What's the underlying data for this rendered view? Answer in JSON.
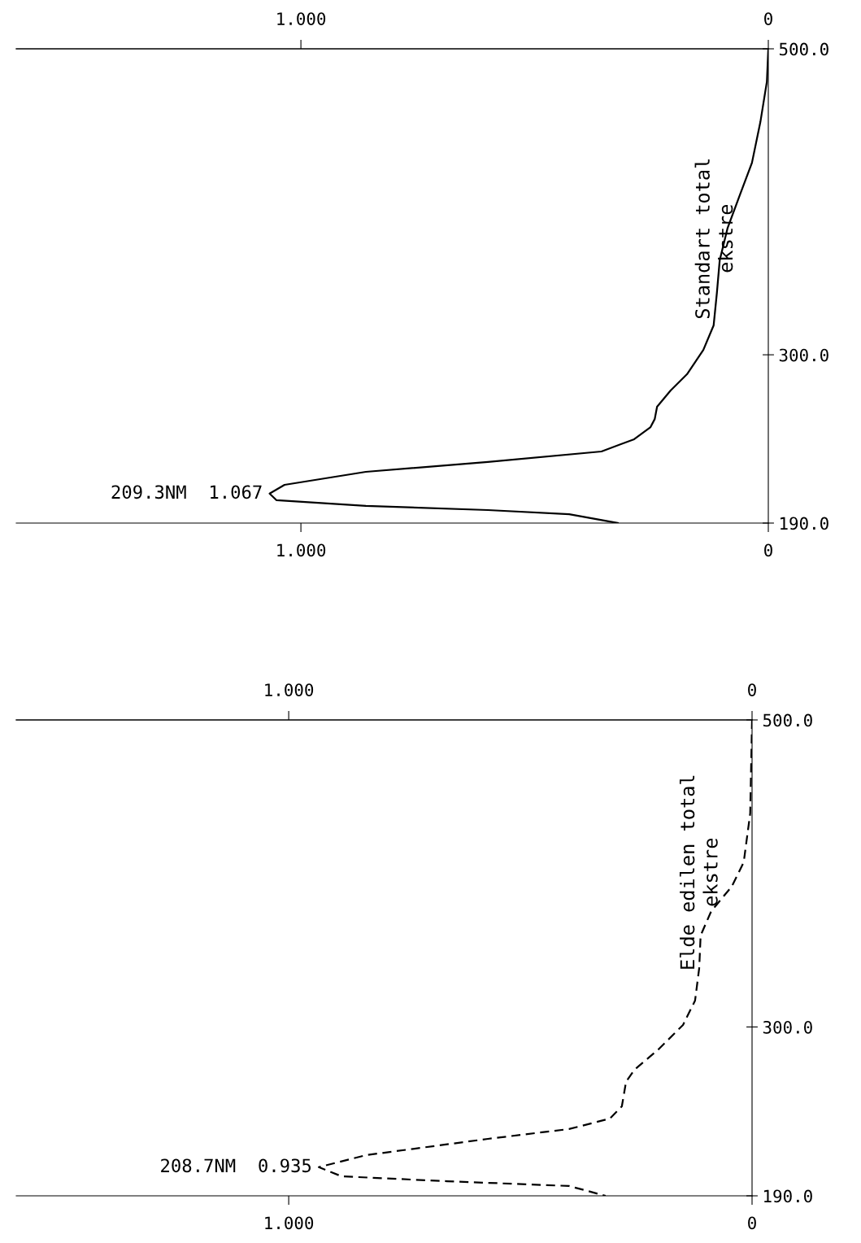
{
  "chart_data": [
    {
      "type": "line",
      "xlim": [
        1.609,
        0
      ],
      "xticks": [
        {
          "value": 1,
          "label": "1.000"
        },
        0
      ],
      "x2lim": [
        1.609,
        0
      ],
      "x2ticks": [
        {
          "value": 1,
          "label": "1.000"
        },
        0
      ],
      "ylim": [
        190,
        500
      ],
      "yticks": [
        {
          "value": 190,
          "label": "190.0"
        },
        {
          "value": 300,
          "label": "300.0"
        },
        {
          "value": 500,
          "label": "500.0"
        }
      ],
      "grid": false,
      "legend": false,
      "line_style": "solid",
      "series": [
        {
          "name": "Standart total ekstre",
          "color": "#000000",
          "x": [
            0,
            0.003,
            0.017,
            0.035,
            0.061,
            0.087,
            0.104,
            0.11,
            0.117,
            0.139,
            0.174,
            0.209,
            0.238,
            0.243,
            0.252,
            0.287,
            0.357,
            0.6,
            0.861,
            1.035,
            1.067,
            1.052,
            0.861,
            0.6,
            0.426,
            0.322
          ],
          "values": [
            500,
            478.7,
            452.1,
            425.5,
            404.3,
            383.0,
            361.7,
            340.5,
            319.2,
            303.2,
            287.3,
            276.7,
            266.0,
            258.0,
            252.7,
            244.8,
            236.8,
            229.9,
            223.5,
            215.0,
            209.3,
            204.9,
            201.2,
            198.5,
            195.8,
            190
          ]
        }
      ],
      "annotations": [
        {
          "text": "209.3NM  1.067",
          "x": 1.067,
          "y": 209.3
        }
      ]
    },
    {
      "type": "line",
      "xlim": [
        1.588,
        0
      ],
      "xticks": [
        {
          "value": 1,
          "label": "1.000"
        },
        0
      ],
      "x2lim": [
        1.588,
        0
      ],
      "x2ticks": [
        {
          "value": 1,
          "label": "1.000"
        },
        0
      ],
      "ylim": [
        190,
        500
      ],
      "yticks": [
        {
          "value": 190,
          "label": "190.0"
        },
        {
          "value": 300,
          "label": "300.0"
        },
        {
          "value": 500,
          "label": "500.0"
        }
      ],
      "grid": false,
      "legend": false,
      "line_style": "dashed",
      "series": [
        {
          "name": "Elde edilen total ekstre",
          "color": "#000000",
          "x": [
            0,
            0.004,
            0.018,
            0.044,
            0.088,
            0.111,
            0.114,
            0.123,
            0.149,
            0.202,
            0.254,
            0.272,
            0.281,
            0.307,
            0.395,
            0.57,
            0.833,
            0.935,
            0.886,
            0.658,
            0.395,
            0.316
          ],
          "values": [
            500,
            439.1,
            407.3,
            391.4,
            375.5,
            359.6,
            338.4,
            317.2,
            301.3,
            285.4,
            272.1,
            264.2,
            248.3,
            240.3,
            233.5,
            227.1,
            216.5,
            208.7,
            202.7,
            199.5,
            196.4,
            190
          ]
        }
      ],
      "annotations": [
        {
          "text": "208.7NM  0.935",
          "x": 0.935,
          "y": 208.7
        }
      ]
    }
  ]
}
